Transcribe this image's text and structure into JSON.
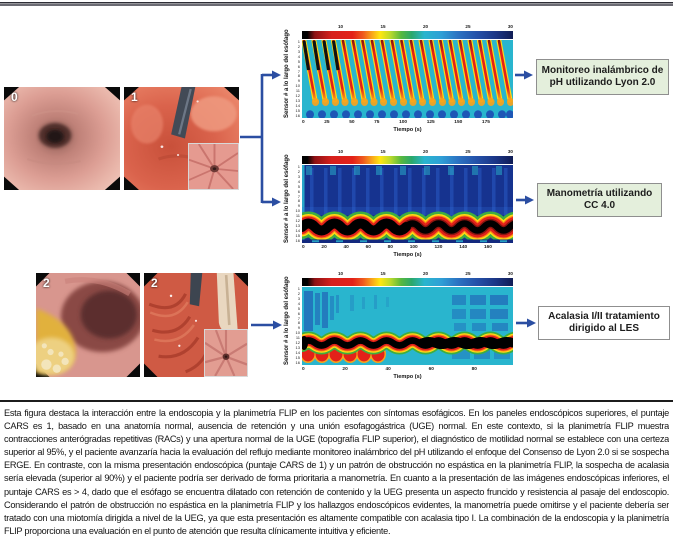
{
  "figure": {
    "endo_labels": {
      "top_left": "0",
      "top_right": "1",
      "bottom_left": "2",
      "bottom_right": "2"
    },
    "panels": [
      {
        "ylabel": "Sensor # a lo largo del esófago",
        "xlabel": "Tiempo (s)",
        "colorbar_ticks": [
          "10",
          "15",
          "20",
          "25",
          "30"
        ],
        "x_ticks": [
          "0",
          "25",
          "50",
          "75",
          "100",
          "125",
          "150",
          "175"
        ],
        "y_ticks": [
          "1",
          "2",
          "3",
          "4",
          "5",
          "6",
          "7",
          "8",
          "9",
          "10",
          "11",
          "12",
          "13",
          "14",
          "15",
          "16"
        ]
      },
      {
        "ylabel": "Sensor # a lo largo del esófago",
        "xlabel": "Tiempo (s)",
        "colorbar_ticks": [
          "10",
          "15",
          "20",
          "25",
          "30"
        ],
        "x_ticks": [
          "0",
          "20",
          "40",
          "60",
          "80",
          "100",
          "120",
          "140",
          "160"
        ],
        "y_ticks": [
          "1",
          "2",
          "3",
          "4",
          "5",
          "6",
          "7",
          "8",
          "9",
          "10",
          "11",
          "12",
          "13",
          "14",
          "15",
          "16"
        ]
      },
      {
        "ylabel": "Sensor # a lo largo del esófago",
        "xlabel": "Tiempo (s)",
        "colorbar_ticks": [
          "10",
          "15",
          "20",
          "25",
          "30"
        ],
        "x_ticks": [
          "0",
          "20",
          "40",
          "60",
          "80"
        ],
        "y_ticks": [
          "1",
          "2",
          "3",
          "4",
          "5",
          "6",
          "7",
          "8",
          "9",
          "10",
          "11",
          "12",
          "13",
          "14",
          "15",
          "16"
        ]
      }
    ],
    "boxes": [
      {
        "label": "Monitoreo inalámbrico de pH utilizando Lyon 2.0"
      },
      {
        "label": "Manometría utilizando CC 4.0"
      },
      {
        "label": "Acalasia I/II tratamiento dirigido al LES"
      }
    ],
    "colors": {
      "arrow": "#2b4ea2",
      "box_green": "#e4efdc",
      "box_white": "#ffffff"
    }
  },
  "caption": "Esta figura destaca la interacción entre la endoscopia y la planimetría FLIP en los pacientes con síntomas esofágicos. En los paneles endoscópicos superiores, el puntaje CARS es 1, basado en una anatomía normal, ausencia de retención y una unión esofagogástrica (UGE) normal. En este contexto, si la planimetría FLIP muestra contracciones anterógradas repetitivas (RACs) y una apertura normal de la UGE (topografía FLIP superior), el diagnóstico de motilidad normal se establece con una certeza superior al 95%, y el paciente avanzaría hacia la evaluación del reflujo mediante monitoreo inalámbrico del pH utilizando el enfoque del Consenso de Lyon 2.0 si se sospecha ERGE. En contraste, con la misma presentación endoscópica (puntaje CARS de 1) y un patrón de obstrucción no espástica en la planimetría FLIP, la sospecha de acalasia sería elevada (superior al 90%) y el paciente podría ser derivado de forma prioritaria a manometría. En cuanto a la presentación de las imágenes endoscópicas inferiores, el puntaje CARS es > 4, dado que el esófago se encuentra dilatado con retención de contenido y la UEG presenta un aspecto fruncido y resistencia al pasaje del endoscopio. Considerando el patrón de obstrucción no espástica en la planimetría FLIP y los hallazgos endoscópicos evidentes, la manometría puede omitirse y el paciente debería ser tratado con una miotomía dirigida a nivel de la UEG, ya que esta presentación es altamente compatible con acalasia tipo I. La combinación de la endoscopia y la planimetría FLIP proporciona una evaluación en el punto de atención que resulta clínicamente intuitiva y eficiente."
}
